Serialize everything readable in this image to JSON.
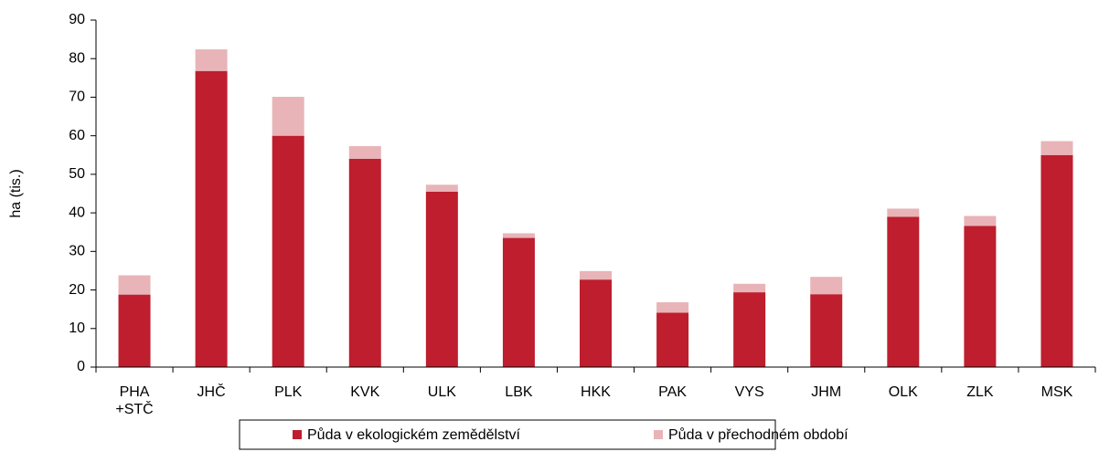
{
  "chart_data": {
    "type": "stacked_bar",
    "y_label": "ha (tis.)",
    "categories": [
      "PHA +STČ",
      "JHČ",
      "PLK",
      "KVK",
      "ULK",
      "LBK",
      "HKK",
      "PAK",
      "VYS",
      "JHM",
      "OLK",
      "ZLK",
      "MSK"
    ],
    "series": [
      {
        "name": "Půda v ekologickém zemědělství",
        "color": "#be1e2d",
        "values": [
          18.8,
          76.8,
          60.0,
          54.0,
          45.5,
          33.5,
          22.7,
          14.1,
          19.4,
          18.9,
          39.0,
          36.6,
          55.0
        ]
      },
      {
        "name": "Půda v přechodném období",
        "color": "#e8b4b8",
        "values": [
          5.0,
          5.6,
          10.1,
          3.3,
          1.8,
          1.2,
          2.2,
          2.7,
          2.2,
          4.5,
          2.1,
          2.6,
          3.6
        ]
      }
    ],
    "ylim": [
      0,
      90
    ],
    "yticks": [
      0,
      10,
      20,
      30,
      40,
      50,
      60,
      70,
      80,
      90
    ],
    "grid": false
  }
}
